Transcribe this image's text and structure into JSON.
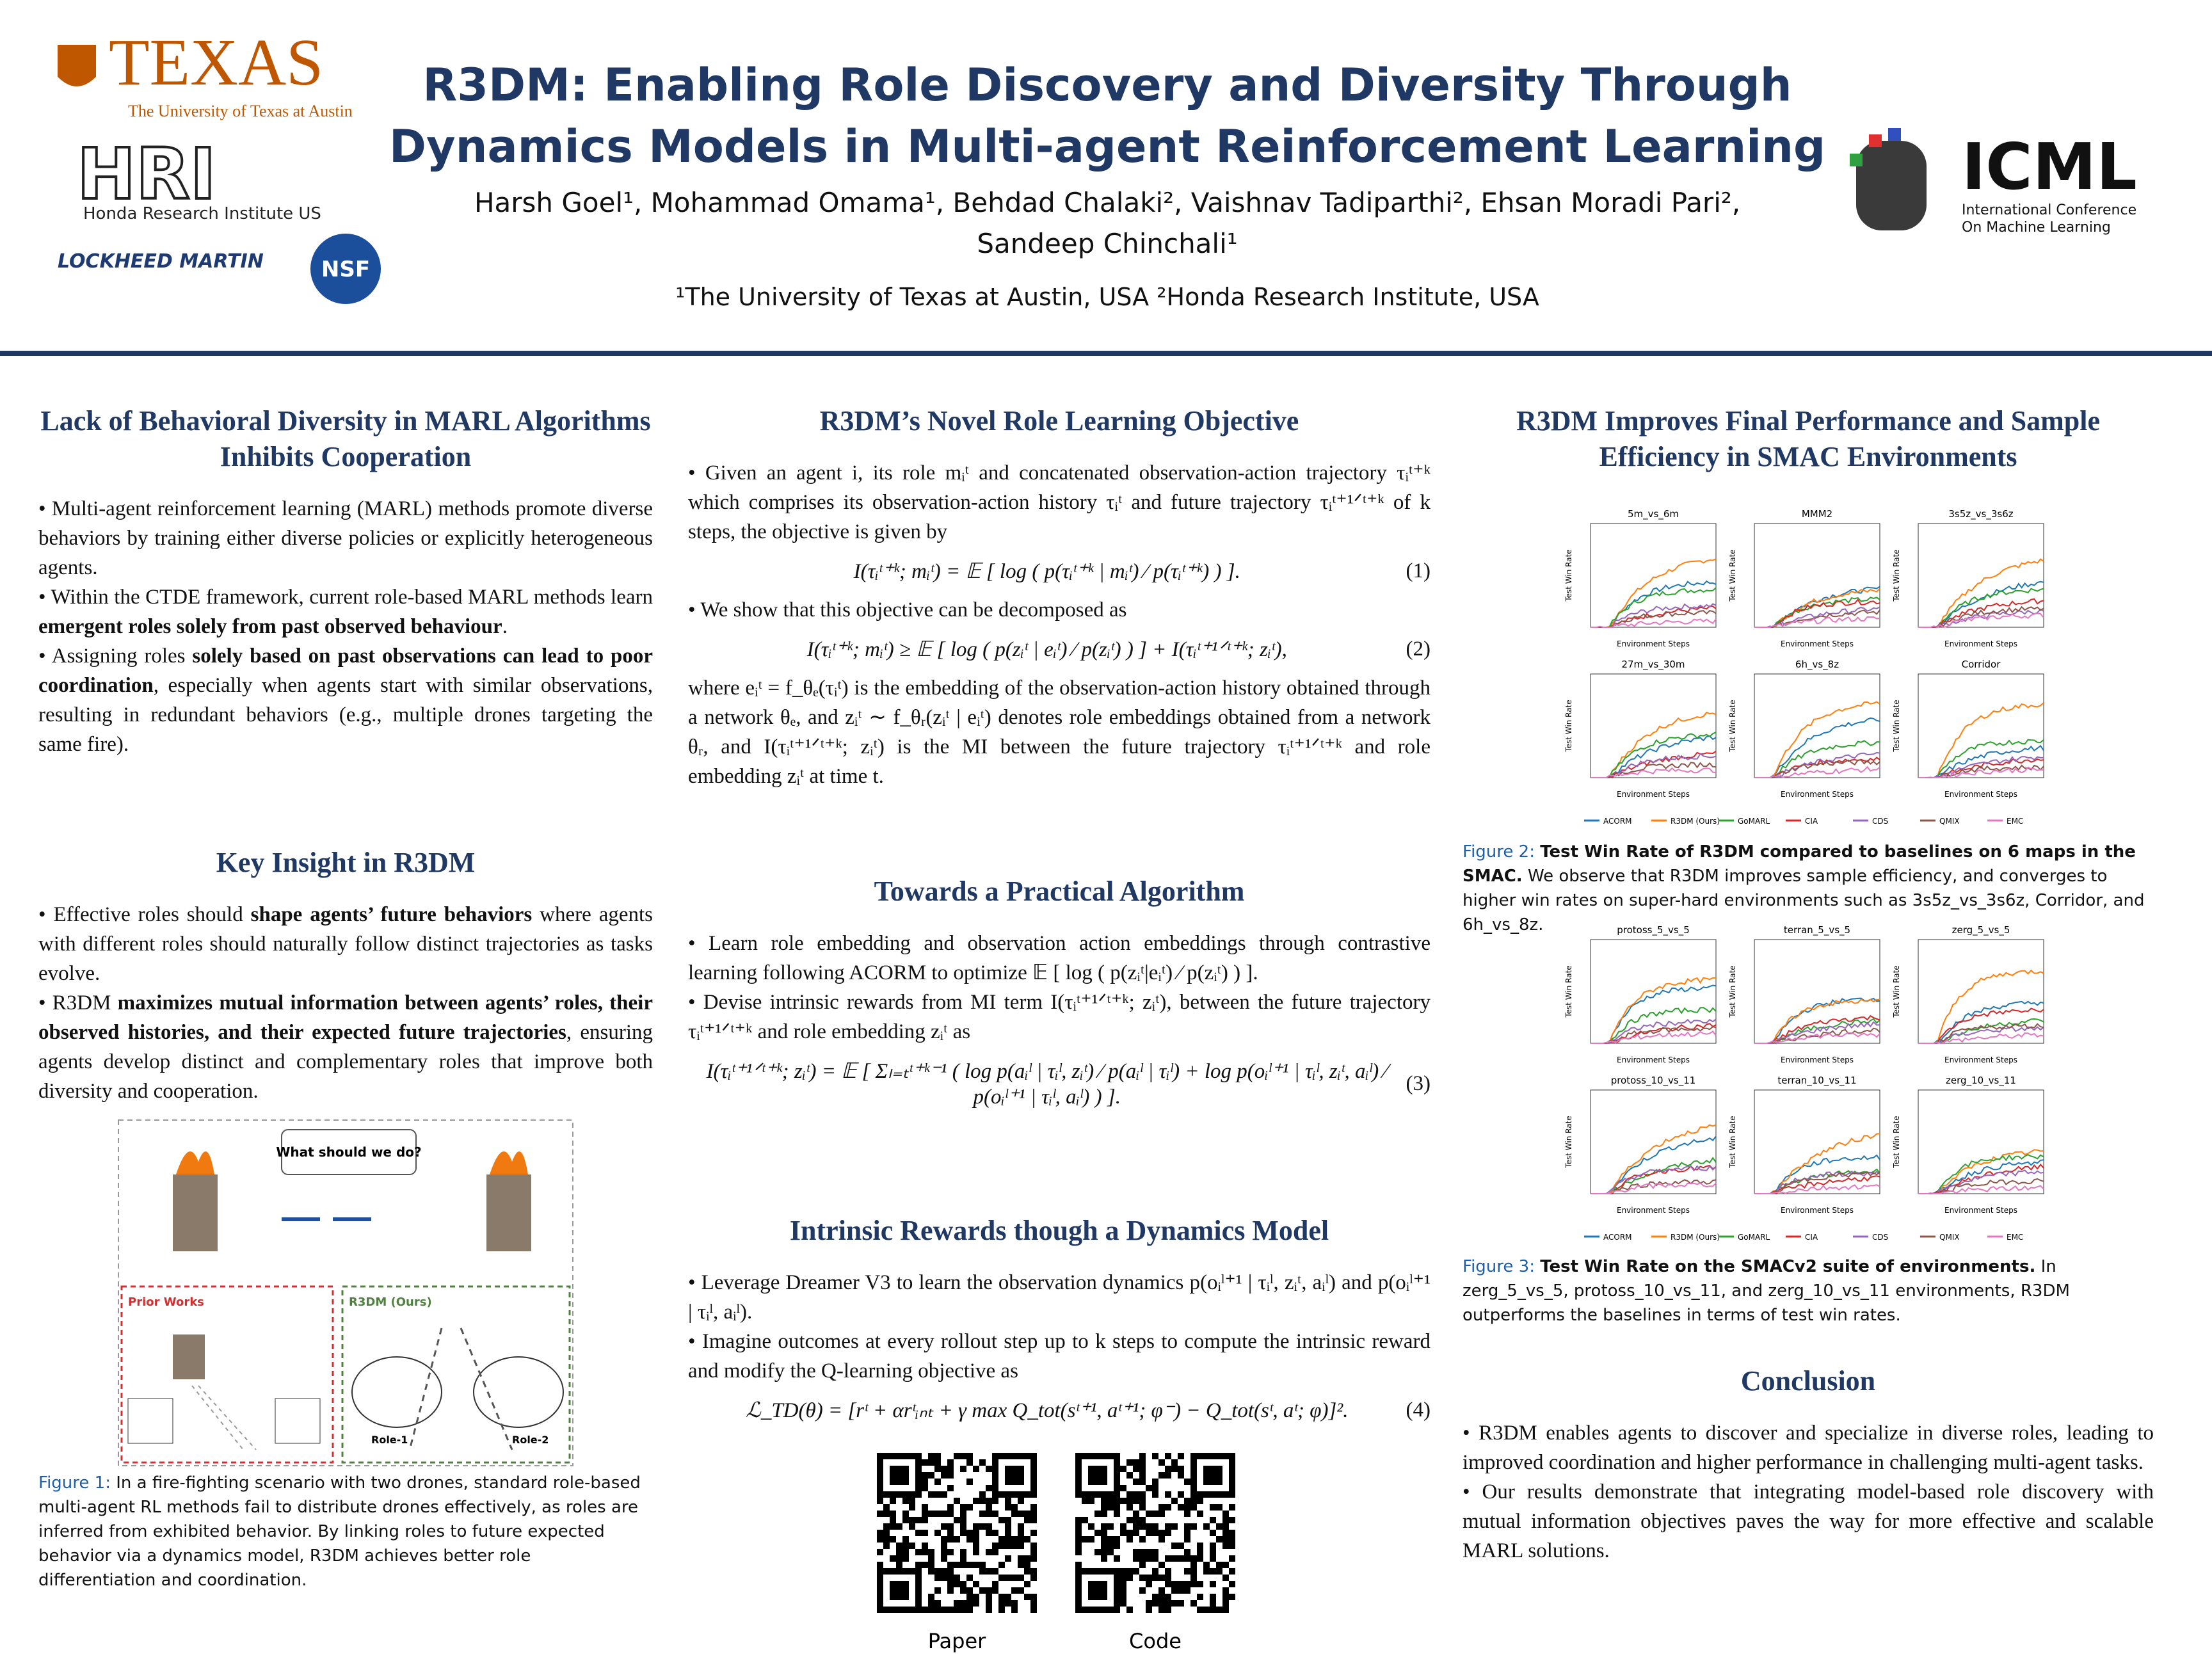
{
  "header": {
    "title": [
      "R3DM: Enabling Role Discovery and Diversity Through",
      "Dynamics Models in Multi-agent Reinforcement Learning"
    ],
    "authors": [
      "Harsh Goel¹, Mohammad Omama¹, Behdad Chalaki², Vaishnav Tadiparthi², Ehsan Moradi Pari²,",
      "Sandeep Chinchali¹"
    ],
    "affiliations": "¹The University of Texas at Austin, USA ²Honda Research Institute, USA",
    "logos": {
      "texas": "TEXAS",
      "texas_sub": "The University of Texas at Austin",
      "hri": "HRI",
      "hri_sub": "Honda Research Institute US",
      "lockheed": "LOCKHEED MARTIN",
      "nsf": "NSF",
      "icml": "ICML",
      "icml_sub": [
        "International Conference",
        "On Machine Learning"
      ]
    }
  },
  "sections": [
    {
      "title": "Lack of Behavioral Diversity in MARL Algorithms Inhibits Cooperation",
      "items": [
        {
          "text": [
            "• Multi-agent reinforcement learning (MARL) methods promote diverse behaviors by training either diverse policies or explicitly heterogeneous agents."
          ]
        },
        {
          "text": [
            "• Within the CTDE framework, current role-based MARL methods learn ",
            "emergent roles solely from past observed behaviour",
            "."
          ]
        },
        {
          "text": [
            "• Assigning roles ",
            "solely based on past observations can lead to poor coordination",
            ", especially when agents start with similar observations, resulting in redundant behaviors (e.g., multiple drones targeting the same fire)."
          ]
        }
      ]
    },
    {
      "title": "Key Insight in R3DM",
      "items": [
        {
          "text": [
            "• Effective roles should ",
            "shape agents’ future behaviors",
            " where agents with different roles should naturally follow distinct trajectories as tasks evolve."
          ]
        },
        {
          "text": [
            "• R3DM ",
            "maximizes mutual information between agents’ roles, their observed histories, and their expected future trajectories",
            ", ensuring agents develop distinct and complementary roles that improve both diversity and cooperation."
          ]
        }
      ]
    },
    {
      "title": "R3DM’s Novel Role Learning Objective",
      "items": [
        {
          "text": [
            "• Given an agent i, its role mᵢᵗ and concatenated observation-action trajectory τᵢᵗ⁺ᵏ which comprises its observation-action history τᵢᵗ and future trajectory τᵢᵗ⁺¹ᐟᵗ⁺ᵏ of k steps, the objective is given by"
          ]
        },
        {
          "eq": "I(τᵢᵗ⁺ᵏ; mᵢᵗ) = 𝔼 [ log ( p(τᵢᵗ⁺ᵏ | mᵢᵗ) ⁄ p(τᵢᵗ⁺ᵏ) ) ].",
          "num": "(1)"
        },
        {
          "text": [
            "• We show that this objective can be decomposed as"
          ]
        },
        {
          "eq": "I(τᵢᵗ⁺ᵏ; mᵢᵗ) ≥ 𝔼 [ log ( p(zᵢᵗ | eᵢᵗ) ⁄ p(zᵢᵗ) ) ] + I(τᵢᵗ⁺¹ᐟᵗ⁺ᵏ; zᵢᵗ),",
          "num": "(2)"
        },
        {
          "text": [
            "where eᵢᵗ = f_θₑ(τᵢᵗ) is the embedding of the observation-action history obtained through a network θₑ, and zᵢᵗ ∼ f_θᵣ(zᵢᵗ | eᵢᵗ) denotes role embeddings obtained from a network θᵣ, and I(τᵢᵗ⁺¹ᐟᵗ⁺ᵏ; zᵢᵗ) is the MI between the future trajectory τᵢᵗ⁺¹ᐟᵗ⁺ᵏ and role embedding zᵢᵗ at time t."
          ]
        }
      ]
    },
    {
      "title": "Towards a Practical Algorithm",
      "items": [
        {
          "text": [
            "• Learn role embedding and observation action embeddings through contrastive learning following ACORM to optimize 𝔼 [ log ( p(zᵢᵗ|eᵢᵗ) ⁄ p(zᵢᵗ) ) ]."
          ]
        },
        {
          "text": [
            "• Devise intrinsic rewards from MI term I(τᵢᵗ⁺¹ᐟᵗ⁺ᵏ; zᵢᵗ), between the future trajectory τᵢᵗ⁺¹ᐟᵗ⁺ᵏ and role embedding zᵢᵗ as"
          ]
        },
        {
          "eq": "I(τᵢᵗ⁺¹ᐟᵗ⁺ᵏ; zᵢᵗ) = 𝔼 [ Σₗ₌ₜᵗ⁺ᵏ⁻¹ ( log p(aᵢˡ | τᵢˡ, zᵢᵗ) ⁄ p(aᵢˡ | τᵢˡ) + log p(oᵢˡ⁺¹ | τᵢˡ, zᵢᵗ, aᵢˡ) ⁄ p(oᵢˡ⁺¹ | τᵢˡ, aᵢˡ) ) ].",
          "num": "(3)"
        }
      ]
    },
    {
      "title": "Intrinsic Rewards though a Dynamics Model",
      "items": [
        {
          "text": [
            "• Leverage Dreamer V3 to learn the observation dynamics p(oᵢˡ⁺¹ | τᵢˡ, zᵢᵗ, aᵢˡ) and p(oᵢˡ⁺¹ | τᵢˡ, aᵢˡ)."
          ]
        },
        {
          "text": [
            "• Imagine outcomes at every rollout step up to k steps to compute the intrinsic reward and modify the Q-learning objective as"
          ]
        },
        {
          "eq": "ℒ_TD(θ) = [rᵗ + αrᵗᵢₙₜ + γ max Q_tot(sᵗ⁺¹, aᵗ⁺¹; φ⁻) − Q_tot(sᵗ, aᵗ; φ)]².",
          "num": "(4)"
        }
      ]
    },
    {
      "title": "R3DM Improves Final Performance and Sample Efficiency in SMAC Environments",
      "items": []
    },
    {
      "title": "Conclusion",
      "items": [
        {
          "text": [
            "• R3DM enables agents to discover and specialize in diverse roles, leading to improved coordination and higher performance in challenging multi-agent tasks."
          ]
        },
        {
          "text": [
            "• Our results demonstrate that integrating model-based role discovery with mutual information objectives paves the way for more effective and scalable MARL solutions."
          ]
        }
      ]
    }
  ],
  "figure1": {
    "speech": "What should we do?",
    "prior": "Prior Works",
    "ours": "R3DM (Ours)",
    "role1": "Role-1",
    "role2": "Role-2",
    "caption_label": "Figure 1:",
    "caption": "In a fire-fighting scenario with two drones, standard role-based multi-agent RL methods fail to distribute drones effectively, as roles are inferred from exhibited behavior. By linking roles to future expected behavior via a dynamics model, R3DM achieves better role differentiation and coordination."
  },
  "figure2": {
    "panels": [
      "5m_vs_6m",
      "MMM2",
      "3s5z_vs_3s6z",
      "27m_vs_30m",
      "6h_vs_8z",
      "Corridor"
    ],
    "xlabel": "Environment Steps",
    "ylabel": "Test Win Rate",
    "caption_label": "Figure 2:",
    "caption": [
      "Test Win Rate of R3DM compared to baselines on 6 maps in the SMAC.",
      " We observe that R3DM improves sample efficiency, and converges to higher win rates on super-hard environments such as 3s5z_vs_3s6z, Corridor, and 6h_vs_8z."
    ]
  },
  "figure3": {
    "panels": [
      "protoss_5_vs_5",
      "terran_5_vs_5",
      "zerg_5_vs_5",
      "protoss_10_vs_11",
      "terran_10_vs_11",
      "zerg_10_vs_11"
    ],
    "xlabel": "Environment Steps",
    "ylabel": "Test Win Rate",
    "caption_label": "Figure 3:",
    "caption": [
      "Test Win Rate on the SMACv2 suite of environments.",
      " In zerg_5_vs_5, protoss_10_vs_11, and zerg_10_vs_11 environments, R3DM outperforms the baselines in terms of test win rates."
    ]
  },
  "legend": [
    {
      "name": "ACORM",
      "color": "#1f77b4"
    },
    {
      "name": "R3DM (Ours)",
      "color": "#ff7f0e"
    },
    {
      "name": "GoMARL",
      "color": "#2ca02c"
    },
    {
      "name": "CIA",
      "color": "#d62728"
    },
    {
      "name": "CDS",
      "color": "#9467bd"
    },
    {
      "name": "QMIX",
      "color": "#8c564b"
    },
    {
      "name": "EMC",
      "color": "#e377c2"
    }
  ],
  "qr": [
    "Paper",
    "Code"
  ]
}
